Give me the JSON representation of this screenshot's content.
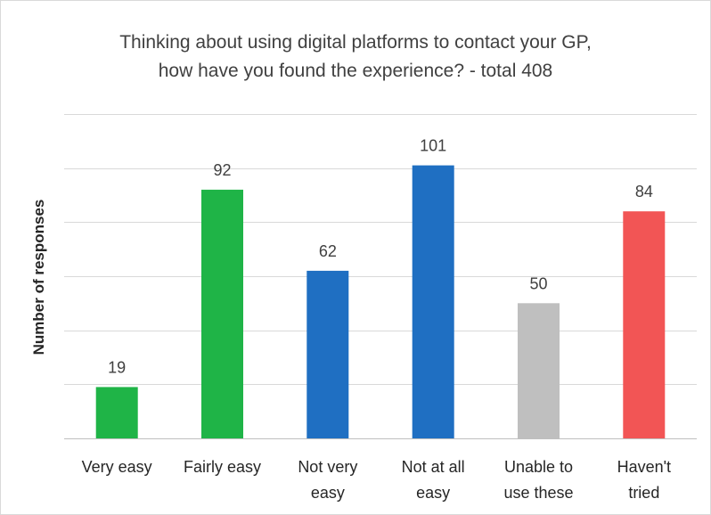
{
  "chart_data": {
    "type": "bar",
    "title": [
      "Thinking about using digital platforms to contact your GP,",
      "how have you found the experience? - total 408"
    ],
    "ylabel": "Number of responses",
    "xlabel": "",
    "categories": [
      [
        "Very easy"
      ],
      [
        "Fairly easy"
      ],
      [
        "Not very",
        "easy"
      ],
      [
        "Not at all",
        "easy"
      ],
      [
        "Unable to",
        "use these"
      ],
      [
        "Haven't",
        "tried"
      ]
    ],
    "values": [
      19,
      92,
      62,
      101,
      50,
      84
    ],
    "colors": [
      "#1fb447",
      "#1fb447",
      "#1f6fc2",
      "#1f6fc2",
      "#bfbfbf",
      "#f25555"
    ],
    "ylim": [
      0,
      120
    ],
    "gridlines": [
      0,
      20,
      40,
      60,
      80,
      100,
      120
    ],
    "grid": true,
    "legend": "none"
  }
}
